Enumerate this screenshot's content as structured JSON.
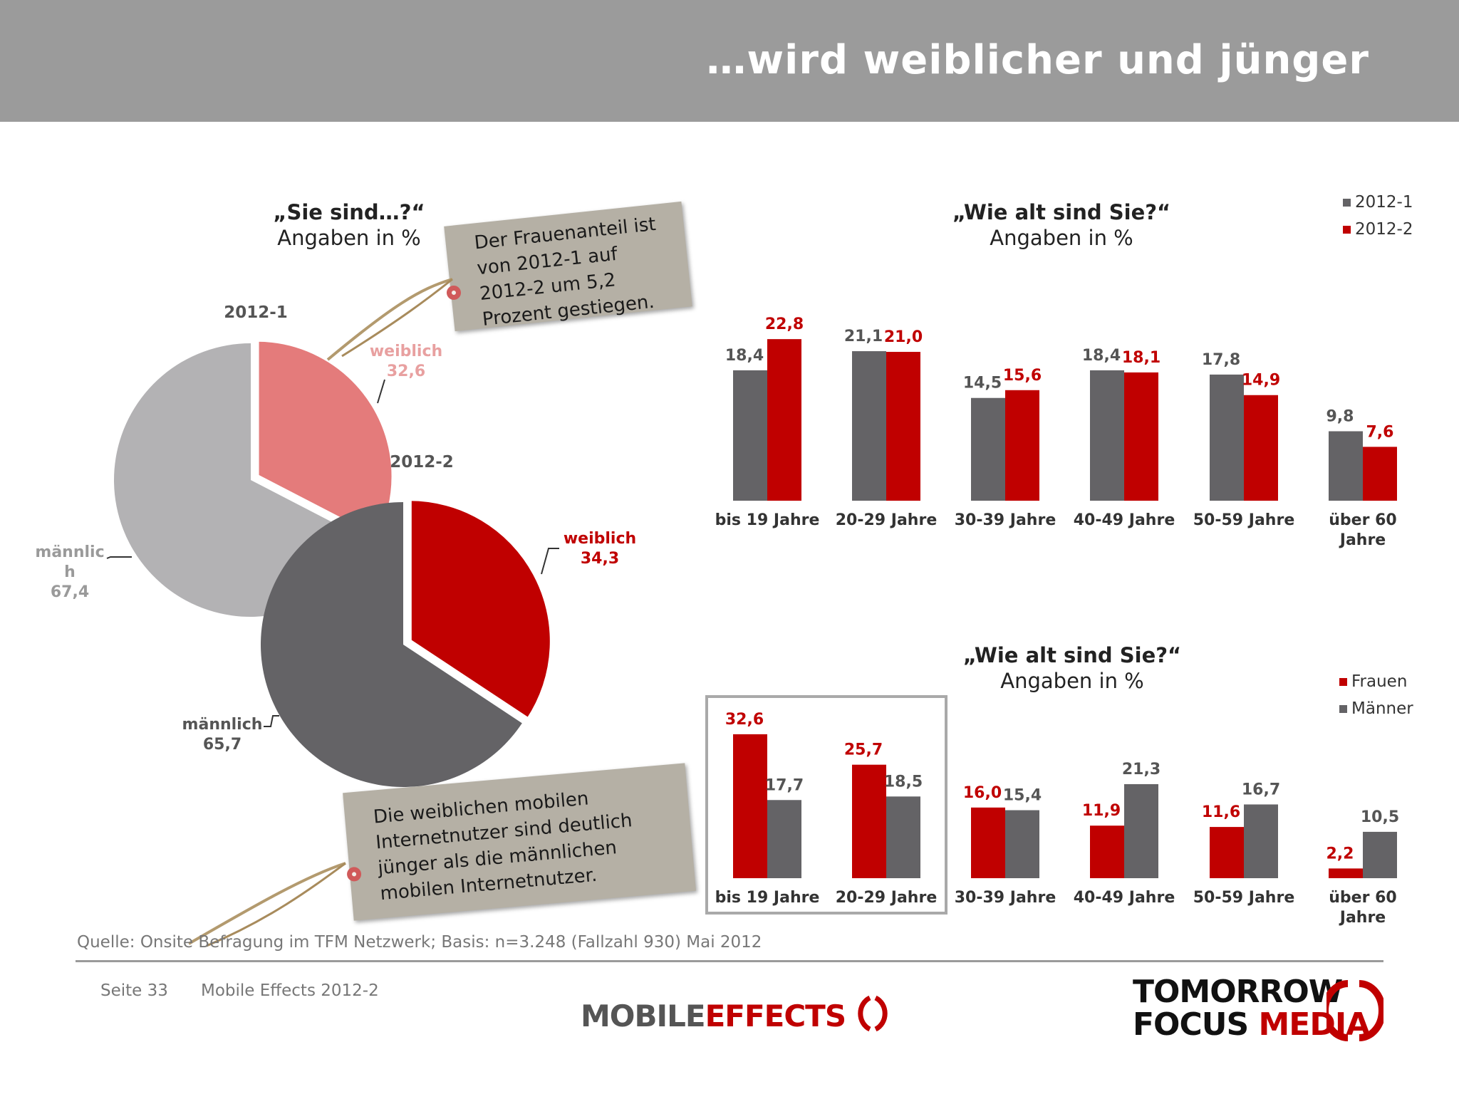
{
  "header": {
    "title": "…wird weiblicher und jünger"
  },
  "pie_section": {
    "title": "„Sie sind…?“",
    "subtitle": "Angaben in %",
    "label_2012_1": "2012-1",
    "label_2012_2": "2012-2",
    "w1_name": "weiblich",
    "w1_value": "32,6",
    "m1_name_a": "männlic",
    "m1_name_b": "h",
    "m1_value": "67,4",
    "w2_name": "weiblich",
    "w2_value": "34,3",
    "m2_name": "männlich",
    "m2_value": "65,7"
  },
  "tag_top": {
    "lines": [
      "Der Frauenanteil ist",
      "von 2012-1 auf",
      "2012-2 um 5,2",
      "Prozent gestiegen."
    ]
  },
  "tag_bottom": {
    "lines": [
      "Die weiblichen mobilen",
      "Internetnutzer sind deutlich",
      "jünger als die männlichen",
      "mobilen Internetnutzer."
    ]
  },
  "top_chart": {
    "title": "„Wie alt sind Sie?“",
    "subtitle": "Angaben in %",
    "legend": [
      "2012-1",
      "2012-2"
    ]
  },
  "bottom_chart": {
    "title": "„Wie alt sind Sie?“",
    "subtitle": "Angaben in %",
    "legend": [
      "Frauen",
      "Männer"
    ]
  },
  "colors": {
    "grey": "#646366",
    "red": "#c00000",
    "light_red": "#e47b7b",
    "light_grey": "#b3b2b4",
    "header": "#9b9b9b"
  },
  "chart_data": [
    {
      "type": "pie",
      "title": "„Sie sind…?“",
      "subtitle": "Angaben in %",
      "series": [
        {
          "name": "2012-1",
          "categories": [
            "weiblich",
            "männlich"
          ],
          "values": [
            32.6,
            67.4
          ]
        },
        {
          "name": "2012-2",
          "categories": [
            "weiblich",
            "männlich"
          ],
          "values": [
            34.3,
            65.7
          ]
        }
      ]
    },
    {
      "type": "bar",
      "title": "„Wie alt sind Sie?“",
      "subtitle": "Angaben in %",
      "categories": [
        "bis 19 Jahre",
        "20-29 Jahre",
        "30-39 Jahre",
        "40-49 Jahre",
        "50-59 Jahre",
        "über 60 Jahre"
      ],
      "series": [
        {
          "name": "2012-1",
          "values": [
            18.4,
            21.1,
            14.5,
            18.4,
            17.8,
            9.8
          ],
          "labels": [
            "18,4",
            "21,1",
            "14,5",
            "18,4",
            "17,8",
            "9,8"
          ]
        },
        {
          "name": "2012-2",
          "values": [
            22.8,
            21.0,
            15.6,
            18.1,
            14.9,
            7.6
          ],
          "labels": [
            "22,8",
            "21,0",
            "15,6",
            "18,1",
            "14,9",
            "7,6"
          ]
        }
      ],
      "legend": "top-right"
    },
    {
      "type": "bar",
      "title": "„Wie alt sind Sie?“",
      "subtitle": "Angaben in %",
      "categories": [
        "bis 19 Jahre",
        "20-29 Jahre",
        "30-39 Jahre",
        "40-49 Jahre",
        "50-59 Jahre",
        "über 60 Jahre"
      ],
      "series": [
        {
          "name": "Frauen",
          "values": [
            32.6,
            25.7,
            16.0,
            11.9,
            11.6,
            2.2
          ],
          "labels": [
            "32,6",
            "25,7",
            "16,0",
            "11,9",
            "11,6",
            "2,2"
          ]
        },
        {
          "name": "Männer",
          "values": [
            17.7,
            18.5,
            15.4,
            21.3,
            16.7,
            10.5
          ],
          "labels": [
            "17,7",
            "18,5",
            "15,4",
            "21,3",
            "16,7",
            "10,5"
          ]
        }
      ],
      "legend": "top-right",
      "highlight": [
        "bis 19 Jahre",
        "20-29 Jahre"
      ]
    }
  ],
  "footer": {
    "source": "Quelle: Onsite Befragung im TFM Netzwerk; Basis: n=3.248 (Fallzahl 930) Mai 2012",
    "page": "Seite 33",
    "doc": "Mobile Effects 2012-2",
    "logo_left_a": "MOBILE",
    "logo_left_b": "EFFECTS",
    "logo_right_line1": "TOMORROW",
    "logo_right_line2a": "FOCUS",
    "logo_right_line2b": "MEDIA"
  }
}
